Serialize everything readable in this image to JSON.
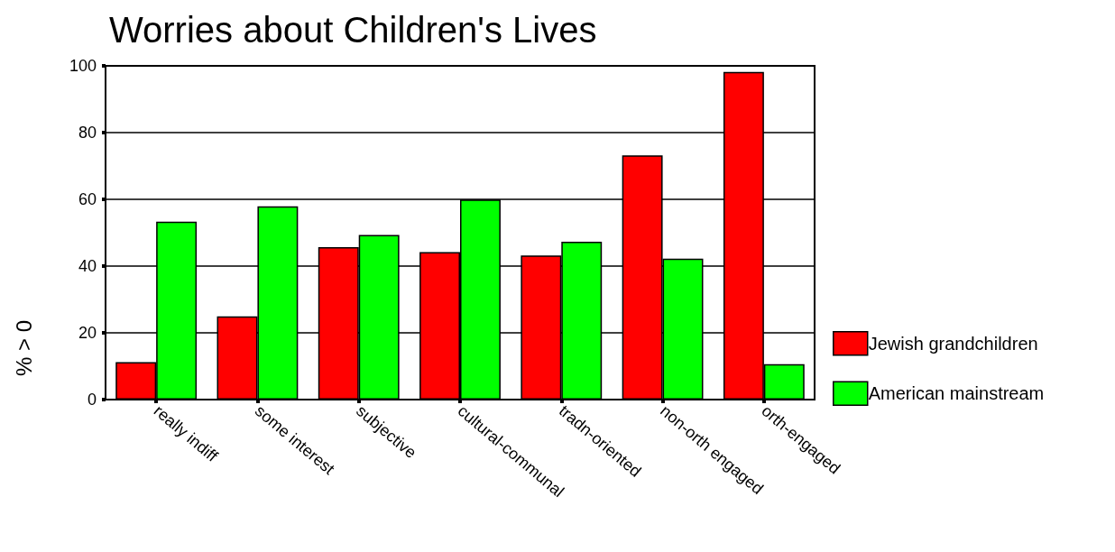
{
  "chart_data": {
    "type": "bar",
    "title": "Worries about Children's Lives",
    "ylabel": "% > 0",
    "categories": [
      "really indiff",
      "some interest",
      "subjective",
      "cultural-communal",
      "tradn-oriented",
      "non-orth engaged",
      "orth-engaged"
    ],
    "series": [
      {
        "name": "Jewish grandchildren",
        "color": "#ff0000",
        "values": [
          11.2,
          24.9,
          45.7,
          44.2,
          43.2,
          73.2,
          98.2
        ]
      },
      {
        "name": "American mainstream",
        "color": "#00ff00",
        "values": [
          53.3,
          57.9,
          49.3,
          59.9,
          47.3,
          42.2,
          10.6
        ]
      }
    ],
    "ylim": [
      0,
      100
    ],
    "yticks": [
      0,
      20,
      40,
      60,
      80,
      100
    ],
    "grid": "y",
    "legend": "right"
  }
}
